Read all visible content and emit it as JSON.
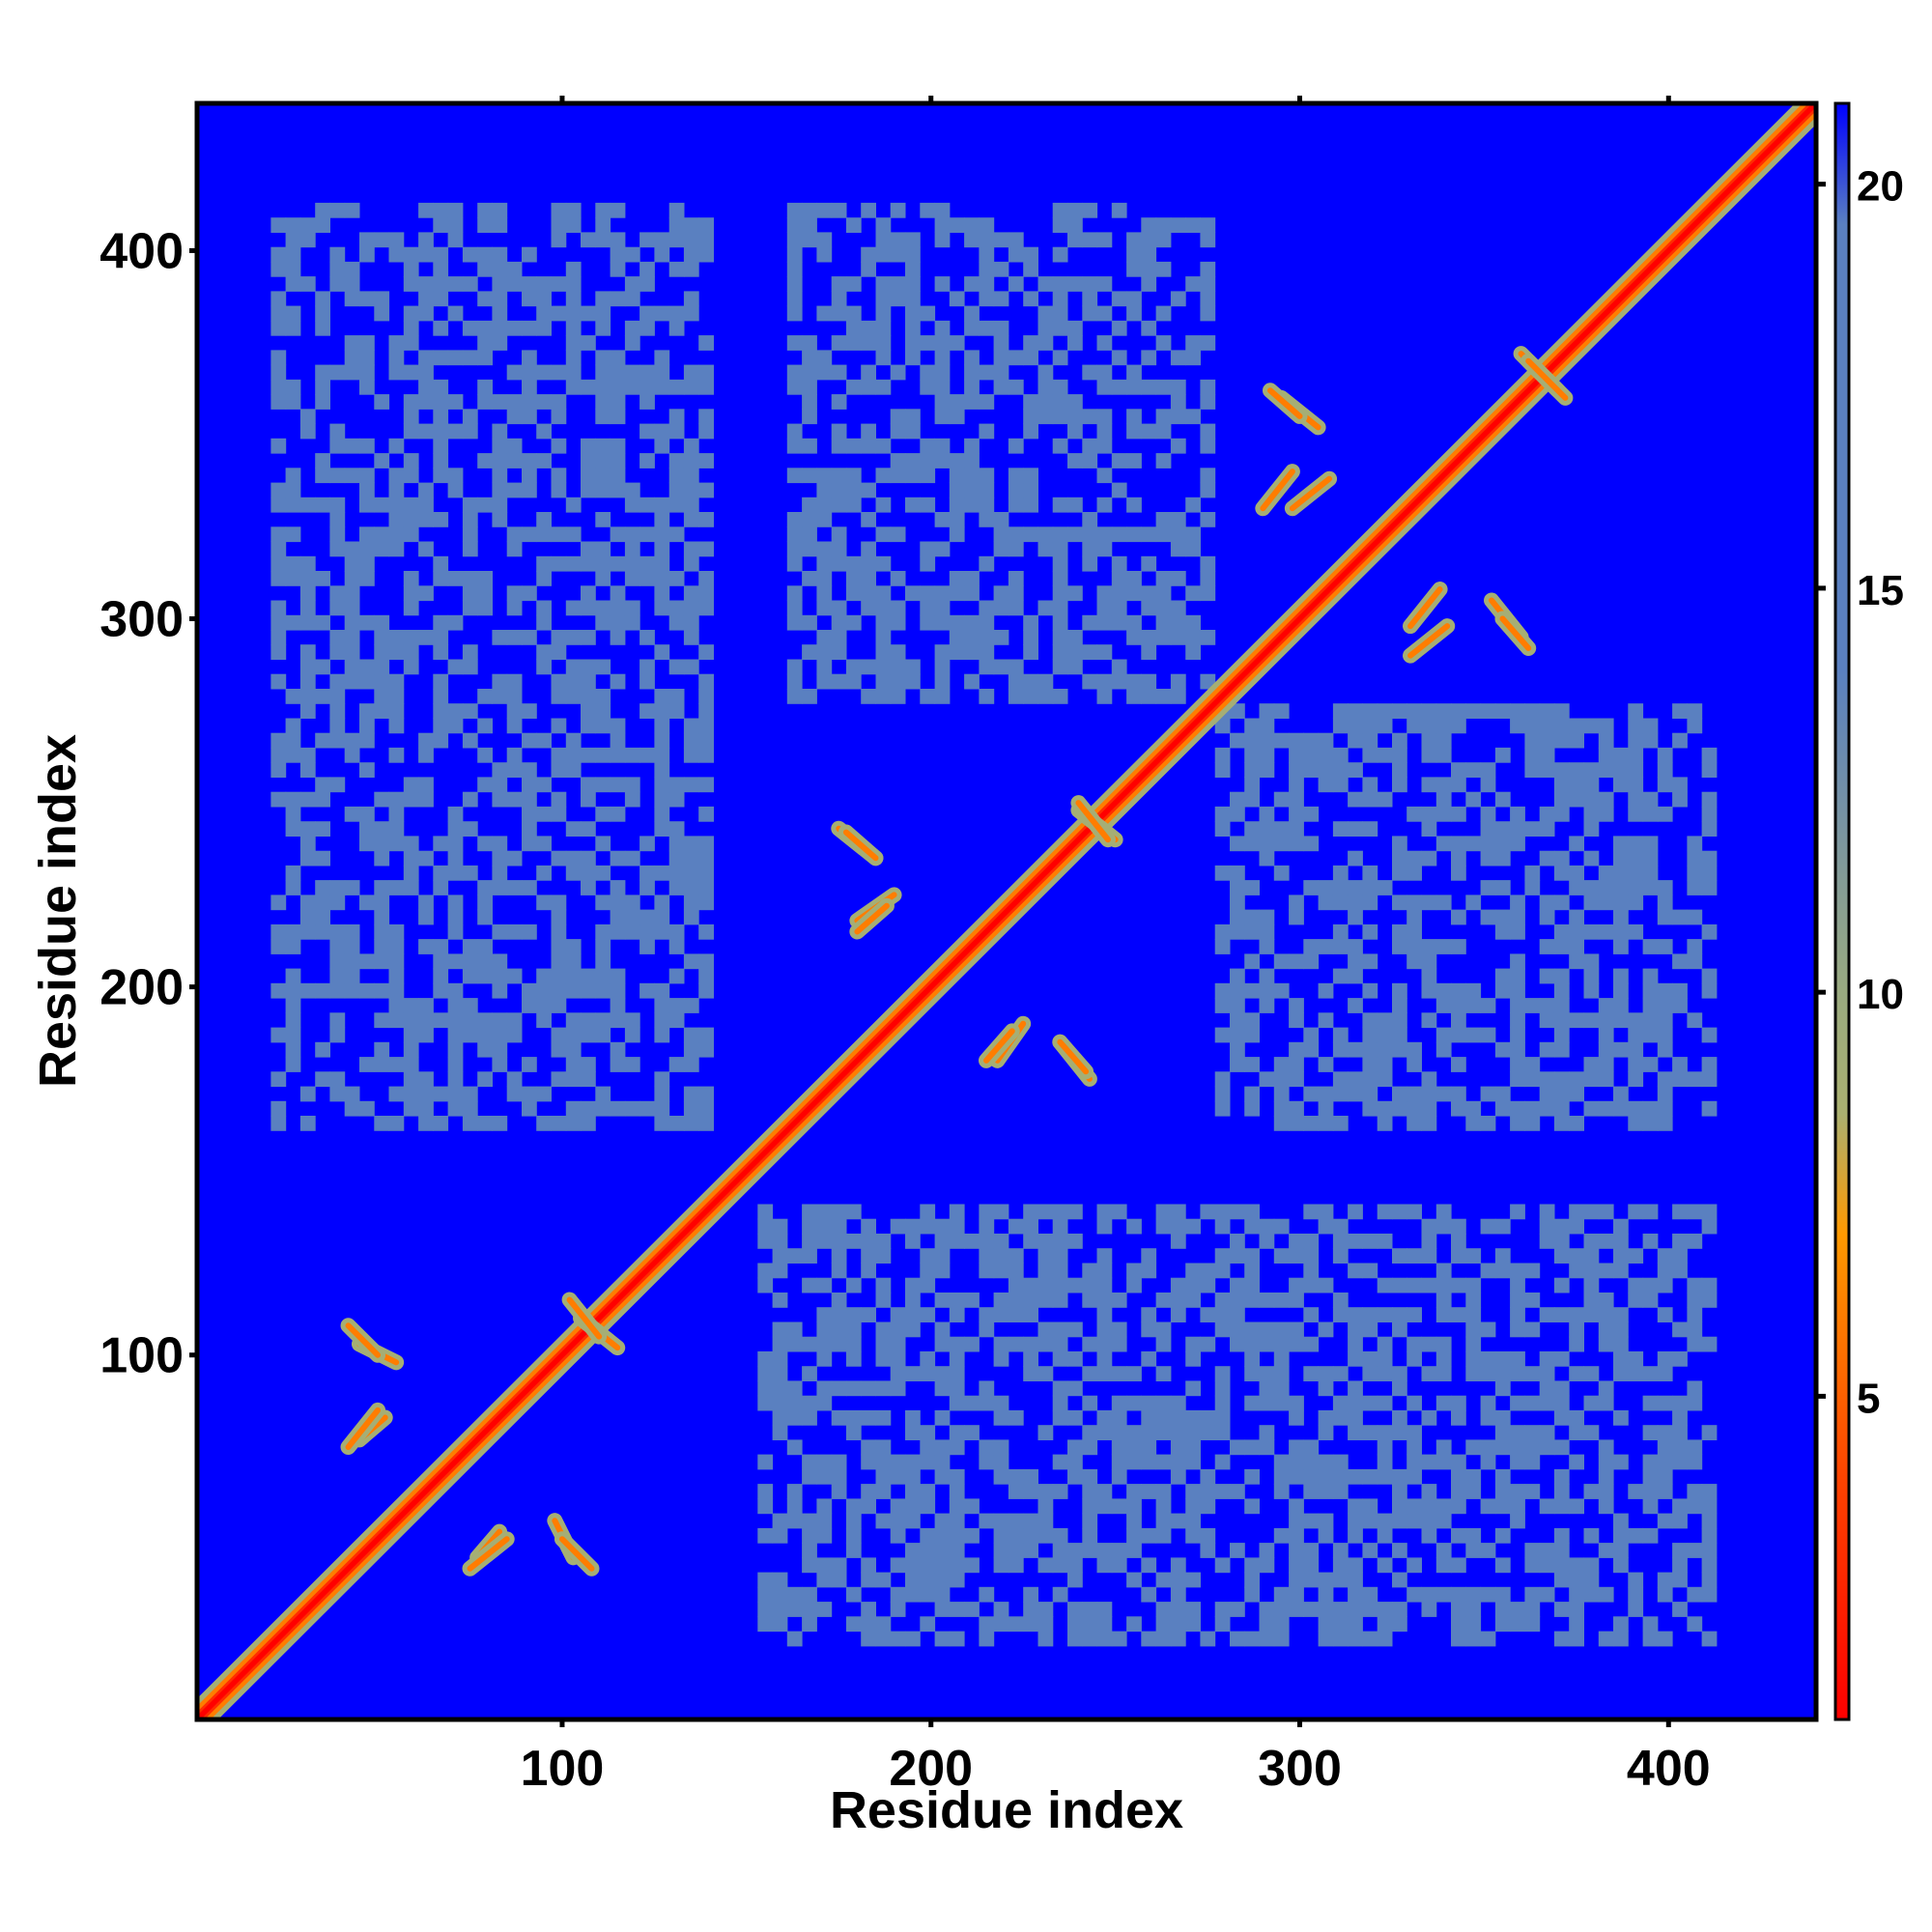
{
  "chart_data": {
    "type": "heatmap",
    "subtype": "residue distance map (symmetric)",
    "title": "",
    "xlabel": "Residue index",
    "ylabel": "Residue index",
    "n_residues": 440,
    "xlim": [
      1,
      440
    ],
    "ylim": [
      1,
      440
    ],
    "x_ticks": [
      100,
      200,
      300,
      400
    ],
    "y_ticks": [
      100,
      200,
      300,
      400
    ],
    "x_tick_labels": [
      "100",
      "200",
      "300",
      "400"
    ],
    "y_tick_labels": [
      "100",
      "200",
      "300",
      "400"
    ],
    "colorbar": {
      "position": "right",
      "range": [
        1,
        21
      ],
      "ticks": [
        5,
        10,
        15,
        20
      ],
      "tick_labels": [
        "5",
        "10",
        "15",
        "20"
      ],
      "colors": [
        {
          "value": 1,
          "color": "#ff0000"
        },
        {
          "value": 4,
          "color": "#ff4400"
        },
        {
          "value": 7,
          "color": "#ff9900"
        },
        {
          "value": 8.5,
          "color": "#aab070"
        },
        {
          "value": 10,
          "color": "#9aaa80"
        },
        {
          "value": 14,
          "color": "#5a80c0"
        },
        {
          "value": 19.5,
          "color": "#5a80c0"
        },
        {
          "value": 21,
          "color": "#0000ff"
        }
      ]
    },
    "domains": [
      {
        "start": 1,
        "end": 140
      },
      {
        "start": 160,
        "end": 275
      },
      {
        "start": 275,
        "end": 410
      }
    ],
    "interdomain_contact_blocks": [
      {
        "x_range": [
          20,
          140
        ],
        "y_range": [
          160,
          410
        ]
      },
      {
        "x_range": [
          160,
          275
        ],
        "y_range": [
          275,
          410
        ]
      },
      {
        "x_range": [
          150,
          410
        ],
        "y_range": [
          20,
          140
        ]
      },
      {
        "x_range": [
          275,
          410
        ],
        "y_range": [
          160,
          275
        ]
      }
    ],
    "secondary_structure_contacts": [
      {
        "x": [
          45,
          55
        ],
        "y": [
          103,
          98
        ]
      },
      {
        "x": [
          45,
          52
        ],
        "y": [
          77,
          83
        ]
      },
      {
        "x": [
          75,
          85
        ],
        "y": [
          42,
          50
        ]
      },
      {
        "x": [
          100,
          108
        ],
        "y": [
          50,
          42
        ]
      },
      {
        "x": [
          105,
          115
        ],
        "y": [
          110,
          102
        ]
      },
      {
        "x": [
          175,
          185
        ],
        "y": [
          243,
          235
        ]
      },
      {
        "x": [
          180,
          190
        ],
        "y": [
          218,
          225
        ]
      },
      {
        "x": [
          215,
          222
        ],
        "y": [
          180,
          188
        ]
      },
      {
        "x": [
          235,
          242
        ],
        "y": [
          185,
          177
        ]
      },
      {
        "x": [
          240,
          250
        ],
        "y": [
          248,
          240
        ]
      },
      {
        "x": [
          295,
          305
        ],
        "y": [
          360,
          352
        ]
      },
      {
        "x": [
          298,
          308
        ],
        "y": [
          330,
          338
        ]
      },
      {
        "x": [
          330,
          340
        ],
        "y": [
          290,
          298
        ]
      },
      {
        "x": [
          355,
          362
        ],
        "y": [
          300,
          292
        ]
      },
      {
        "x": [
          360,
          370
        ],
        "y": [
          372,
          362
        ]
      }
    ]
  }
}
